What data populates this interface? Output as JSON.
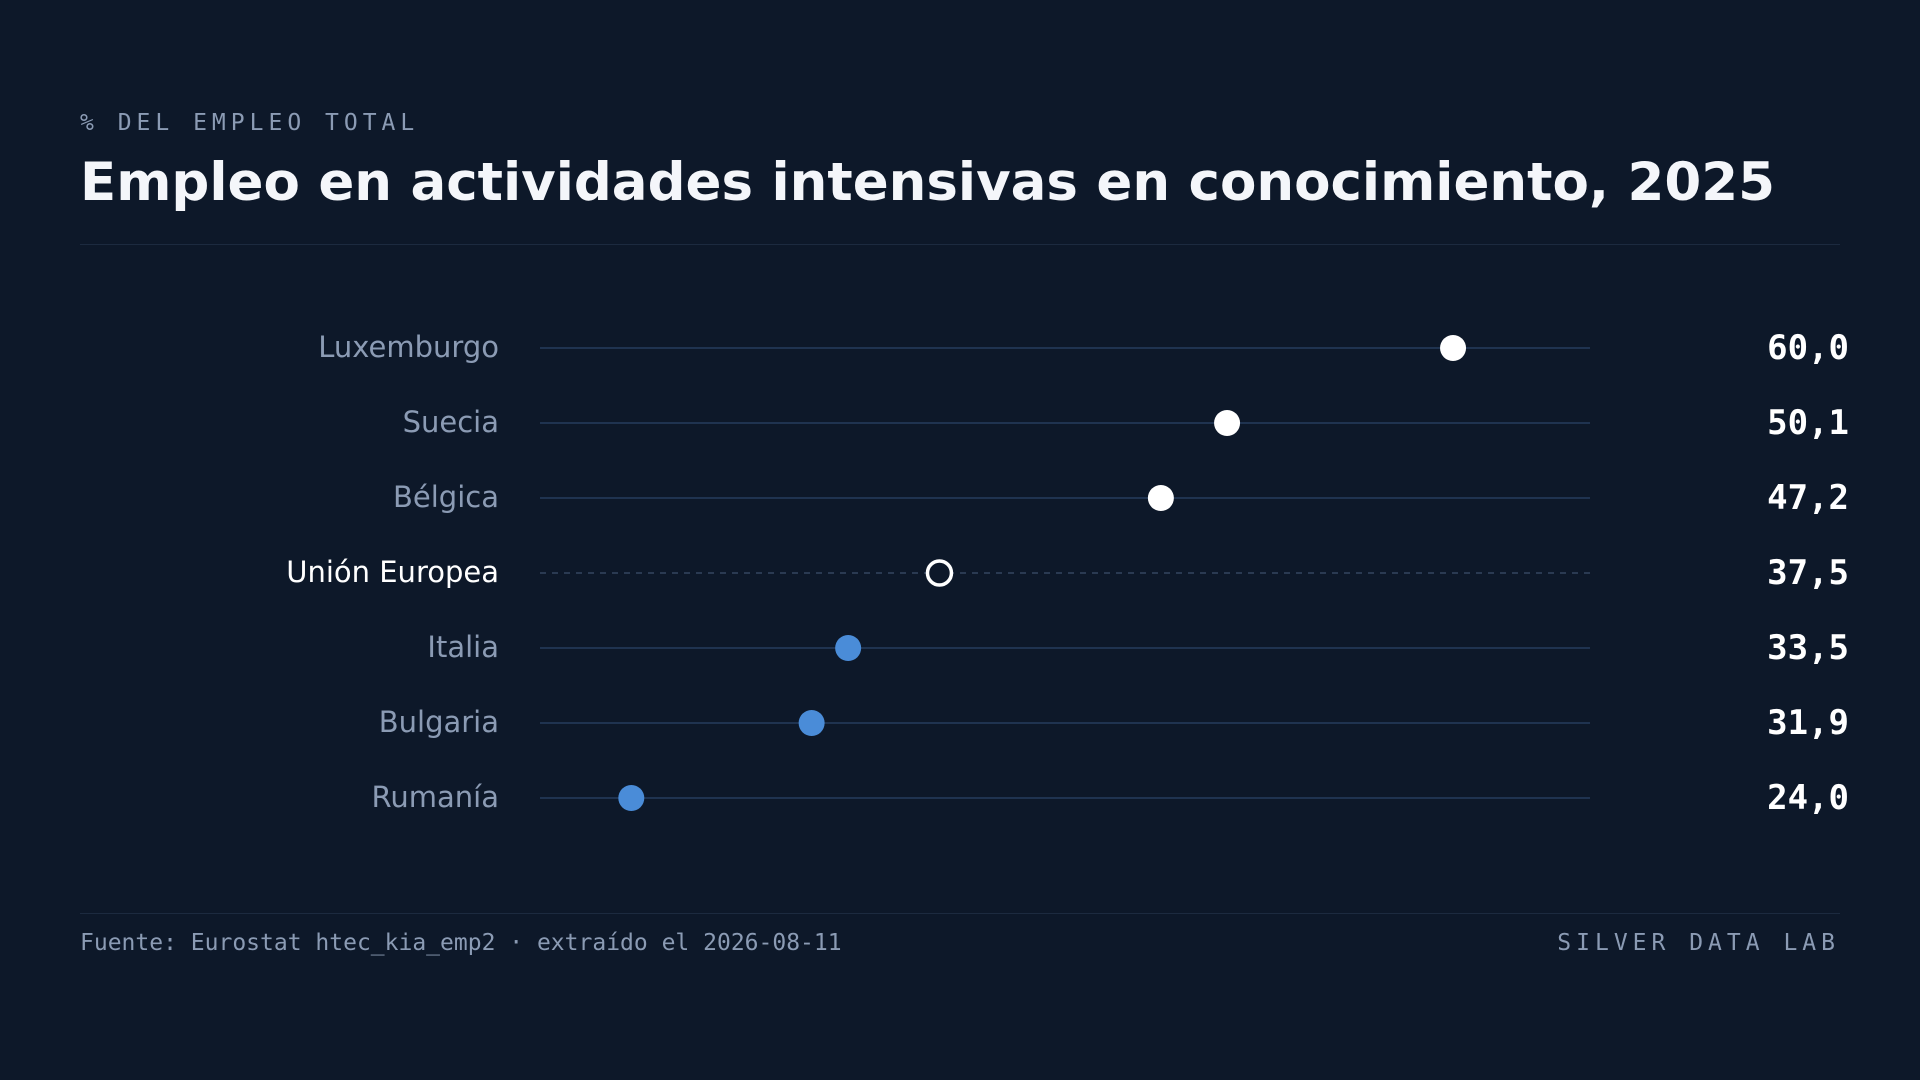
{
  "header": {
    "kicker": "% DEL EMPLEO TOTAL",
    "title": "Empleo en actividades intensivas en conocimiento, 2025"
  },
  "footer": {
    "source": "Fuente: Eurostat htec_kia_emp2 · extraído el 2026-08-11",
    "brand": "SILVER DATA LAB"
  },
  "colors": {
    "background": "#0d1829",
    "track": "#1f3350",
    "highlight_dot": "#ffffff",
    "low_dot": "#4a8cd8",
    "label": "#8b9bb4",
    "label_emphasis": "#ffffff",
    "value": "#ffffff"
  },
  "chart_data": {
    "type": "dot",
    "xlim": [
      20,
      66
    ],
    "categories": [
      "Luxemburgo",
      "Suecia",
      "Bélgica",
      "Unión Europea",
      "Italia",
      "Bulgaria",
      "Rumanía"
    ],
    "values": [
      60.0,
      50.1,
      47.2,
      37.5,
      33.5,
      31.9,
      24.0
    ],
    "value_labels": [
      "60,0",
      "50,1",
      "47,2",
      "37,5",
      "33,5",
      "31,9",
      "24,0"
    ],
    "groups": [
      "above",
      "above",
      "above",
      "reference",
      "below",
      "below",
      "below"
    ]
  }
}
